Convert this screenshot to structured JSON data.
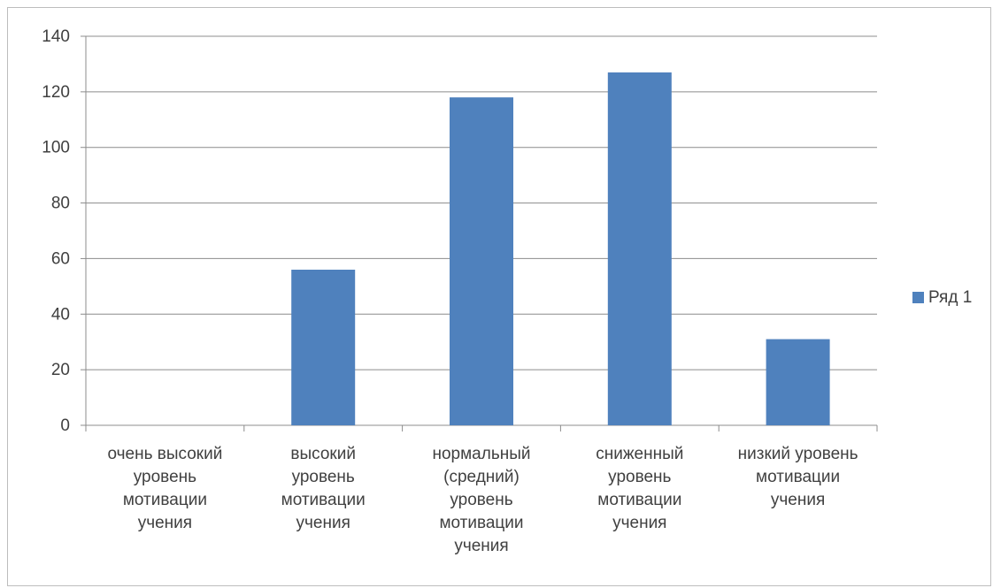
{
  "chart_data": {
    "type": "bar",
    "categories": [
      [
        "очень высокий",
        "уровень",
        "мотивации",
        "учения"
      ],
      [
        "высокий",
        "уровень",
        "мотивации",
        "учения"
      ],
      [
        "нормальный",
        "(средний)",
        "уровень",
        "мотивации",
        "учения"
      ],
      [
        "сниженный",
        "уровень",
        "мотивации",
        "учения"
      ],
      [
        "низкий уровень",
        "мотивации",
        "учения"
      ]
    ],
    "series": [
      {
        "name": "Ряд 1",
        "values": [
          0,
          56,
          118,
          127,
          31
        ]
      }
    ],
    "title": "",
    "xlabel": "",
    "ylabel": "",
    "ylim": [
      0,
      140
    ],
    "yticks": [
      0,
      20,
      40,
      60,
      80,
      100,
      120,
      140
    ],
    "grid": true,
    "legend_position": "right",
    "colors": {
      "bar": "#4f81bd",
      "grid": "#8c8c8c",
      "axis": "#8c8c8c"
    }
  }
}
